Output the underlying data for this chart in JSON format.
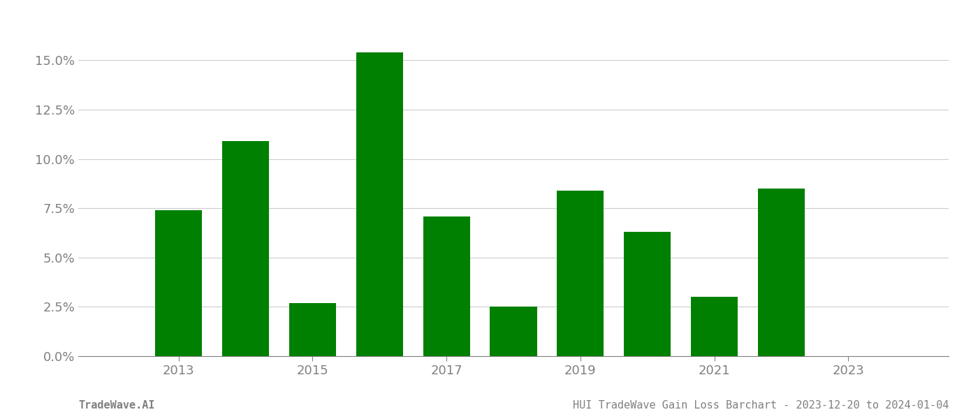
{
  "years": [
    2013,
    2014,
    2015,
    2016,
    2017,
    2018,
    2019,
    2020,
    2021,
    2022
  ],
  "values": [
    0.074,
    0.109,
    0.027,
    0.154,
    0.071,
    0.025,
    0.084,
    0.063,
    0.03,
    0.085
  ],
  "bar_color": "#008000",
  "background_color": "#ffffff",
  "grid_color": "#cccccc",
  "text_color": "#808080",
  "ylim": [
    0,
    0.17
  ],
  "yticks": [
    0.0,
    0.025,
    0.05,
    0.075,
    0.1,
    0.125,
    0.15
  ],
  "xticks": [
    2013,
    2015,
    2017,
    2019,
    2021,
    2023
  ],
  "xlim": [
    2011.5,
    2024.5
  ],
  "footer_left": "TradeWave.AI",
  "footer_right": "HUI TradeWave Gain Loss Barchart - 2023-12-20 to 2024-01-04",
  "footer_color": "#808080",
  "footer_fontsize": 11,
  "tick_fontsize": 13,
  "bar_width": 0.7
}
